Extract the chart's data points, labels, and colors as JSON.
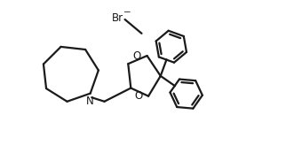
{
  "bg_color": "#ffffff",
  "line_color": "#1a1a1a",
  "line_width": 1.6,
  "font_size_label": 8.5,
  "br_label": "Br",
  "n_label": "N",
  "o_label": "O",
  "fig_width": 3.22,
  "fig_height": 1.9,
  "dpi": 100
}
